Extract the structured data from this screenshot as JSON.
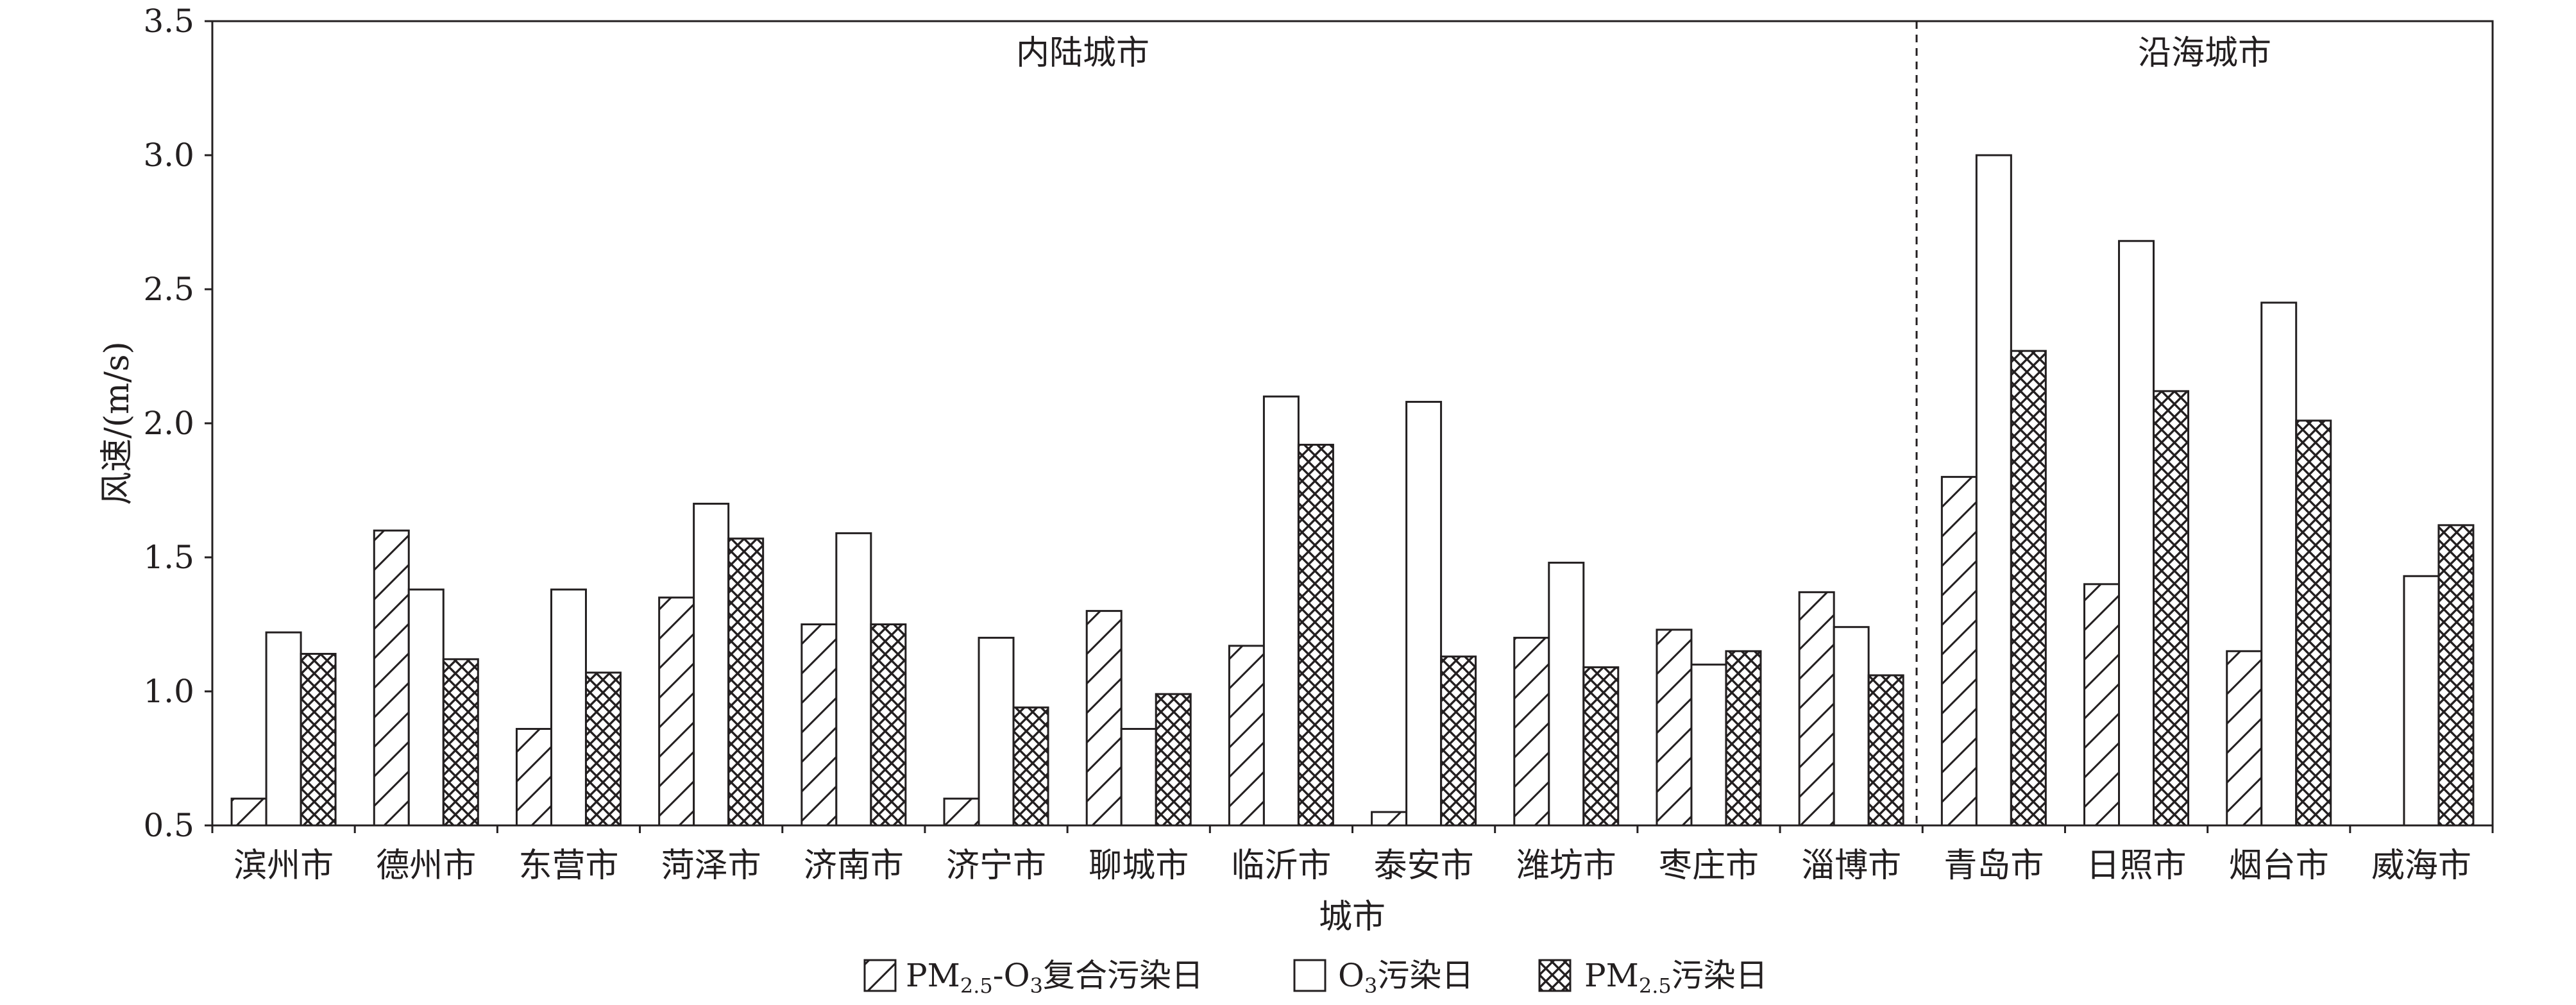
{
  "chart_data": {
    "type": "bar",
    "xlabel": "城市",
    "ylabel": "风速/(m/s)",
    "ylim": [
      0.5,
      3.5
    ],
    "yticks": [
      "0.5",
      "1.0",
      "1.5",
      "2.0",
      "2.5",
      "3.0",
      "3.5"
    ],
    "grid": false,
    "legend_position": "bottom",
    "categories": [
      "滨州市",
      "德州市",
      "东营市",
      "菏泽市",
      "济南市",
      "济宁市",
      "聊城市",
      "临沂市",
      "泰安市",
      "潍坊市",
      "枣庄市",
      "淄博市",
      "青岛市",
      "日照市",
      "烟台市",
      "威海市"
    ],
    "regions": [
      {
        "label": "内陆城市",
        "start_index": 0,
        "end_index": 11
      },
      {
        "label": "沿海城市",
        "start_index": 12,
        "end_index": 15
      }
    ],
    "series": [
      {
        "name": "PM2.5-O3复合污染日",
        "pattern": "hatch",
        "values": [
          0.6,
          1.6,
          0.86,
          1.35,
          1.25,
          0.6,
          1.3,
          1.17,
          0.55,
          1.2,
          1.23,
          1.37,
          1.8,
          1.4,
          1.15,
          null
        ]
      },
      {
        "name": "O3污染日",
        "pattern": "open",
        "values": [
          1.22,
          1.38,
          1.38,
          1.7,
          1.59,
          1.2,
          0.86,
          2.1,
          2.08,
          1.48,
          1.1,
          1.24,
          3.0,
          2.68,
          2.45,
          1.43
        ]
      },
      {
        "name": "PM2.5污染日",
        "pattern": "crosshatch",
        "values": [
          1.14,
          1.12,
          1.07,
          1.57,
          1.25,
          0.94,
          0.99,
          1.92,
          1.13,
          1.09,
          1.15,
          1.06,
          2.27,
          2.12,
          2.01,
          1.62
        ]
      }
    ]
  },
  "legend": {
    "items": [
      {
        "pre": "PM",
        "sub": "2.5",
        "mid": "-O",
        "sub2": "3",
        "post": "复合污染日"
      },
      {
        "pre": "O",
        "sub": "3",
        "mid": "",
        "sub2": "",
        "post": "污染日"
      },
      {
        "pre": "PM",
        "sub": "2.5",
        "mid": "",
        "sub2": "",
        "post": "污染日"
      }
    ]
  },
  "colors": {
    "stroke": "#231f20",
    "fill": "#ffffff"
  }
}
